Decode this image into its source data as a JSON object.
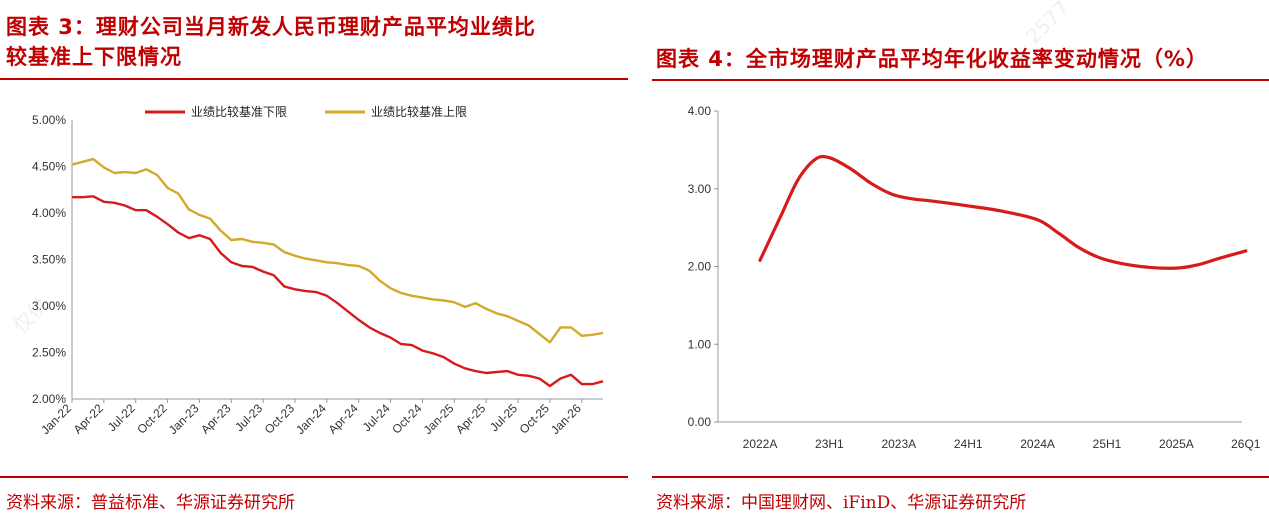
{
  "left": {
    "title_line1": "图表 3：理财公司当月新发人民币理财产品平均业绩比",
    "title_line2": "较基准上下限情况",
    "source": "资料来源：普益标准、华源证券研究所",
    "watermark": "仅供"
  },
  "right": {
    "title": "图表 4：全市场理财产品平均年化收益率变动情况（%）",
    "source": "资料来源：中国理财网、iFinD、华源证券研究所",
    "watermark": "2577"
  },
  "colors": {
    "accent": "#c00000",
    "red_series": "#d71a1a",
    "gold_series": "#d4a829"
  },
  "chart_data": [
    {
      "type": "line",
      "title": "理财公司当月新发人民币理财产品平均业绩比较基准上下限情况",
      "ylim": [
        2.0,
        5.0
      ],
      "yticks": [
        "2.00%",
        "2.50%",
        "3.00%",
        "3.50%",
        "4.00%",
        "4.50%",
        "5.00%"
      ],
      "ytick_values": [
        2.0,
        2.5,
        3.0,
        3.5,
        4.0,
        4.5,
        5.0
      ],
      "xtick_labels": [
        "Jan-22",
        "Apr-22",
        "Jul-22",
        "Oct-22",
        "Jan-23",
        "Apr-23",
        "Jul-23",
        "Oct-23",
        "Jan-24",
        "Apr-24",
        "Jul-24",
        "Oct-24",
        "Jan-25",
        "Apr-25",
        "Jul-25",
        "Oct-25",
        "Jan-26"
      ],
      "xtick_index": [
        0,
        3,
        6,
        9,
        12,
        15,
        18,
        21,
        24,
        27,
        30,
        33,
        36,
        39,
        42,
        45,
        48
      ],
      "legend_position": "top",
      "series": [
        {
          "name": "业绩比较基准下限",
          "color": "#d71a1a",
          "values": [
            4.17,
            4.17,
            4.18,
            4.12,
            4.11,
            4.08,
            4.03,
            4.03,
            3.96,
            3.88,
            3.79,
            3.73,
            3.76,
            3.72,
            3.57,
            3.47,
            3.43,
            3.42,
            3.37,
            3.33,
            3.21,
            3.18,
            3.16,
            3.15,
            3.11,
            3.03,
            2.94,
            2.85,
            2.77,
            2.71,
            2.66,
            2.59,
            2.58,
            2.52,
            2.49,
            2.45,
            2.38,
            2.33,
            2.3,
            2.28,
            2.29,
            2.3,
            2.26,
            2.25,
            2.22,
            2.14,
            2.22,
            2.26,
            2.16,
            2.16,
            2.19
          ]
        },
        {
          "name": "业绩比较基准上限",
          "color": "#d4a829",
          "values": [
            4.52,
            4.55,
            4.58,
            4.49,
            4.43,
            4.44,
            4.43,
            4.47,
            4.41,
            4.27,
            4.21,
            4.04,
            3.98,
            3.94,
            3.81,
            3.71,
            3.72,
            3.69,
            3.68,
            3.66,
            3.58,
            3.54,
            3.51,
            3.49,
            3.47,
            3.46,
            3.44,
            3.43,
            3.38,
            3.27,
            3.19,
            3.14,
            3.11,
            3.09,
            3.07,
            3.06,
            3.04,
            2.99,
            3.03,
            2.97,
            2.92,
            2.89,
            2.84,
            2.79,
            2.7,
            2.61,
            2.77,
            2.77,
            2.68,
            2.69,
            2.71
          ]
        }
      ]
    },
    {
      "type": "line",
      "title": "全市场理财产品平均年化收益率变动情况（%）",
      "ylim": [
        0,
        4
      ],
      "yticks": [
        "0.00",
        "1.00",
        "2.00",
        "3.00",
        "4.00"
      ],
      "ytick_values": [
        0,
        1,
        2,
        3,
        4
      ],
      "categories": [
        "2022A",
        "23H1",
        "2023A",
        "24H1",
        "2024A",
        "25H1",
        "2025A",
        "26Q1"
      ],
      "series": [
        {
          "name": "平均年化收益率",
          "color": "#d71a1a",
          "x": [
            0,
            0.3,
            0.55,
            0.8,
            1.0,
            1.3,
            1.6,
            1.9,
            2.2,
            2.5,
            3.0,
            3.5,
            4.0,
            4.3,
            4.6,
            4.9,
            5.2,
            5.6,
            6.0,
            6.3,
            6.6,
            7.0
          ],
          "values": [
            2.08,
            2.65,
            3.12,
            3.38,
            3.4,
            3.26,
            3.07,
            2.93,
            2.87,
            2.84,
            2.78,
            2.71,
            2.6,
            2.43,
            2.24,
            2.11,
            2.04,
            1.99,
            1.98,
            2.02,
            2.1,
            2.2
          ]
        }
      ]
    }
  ]
}
